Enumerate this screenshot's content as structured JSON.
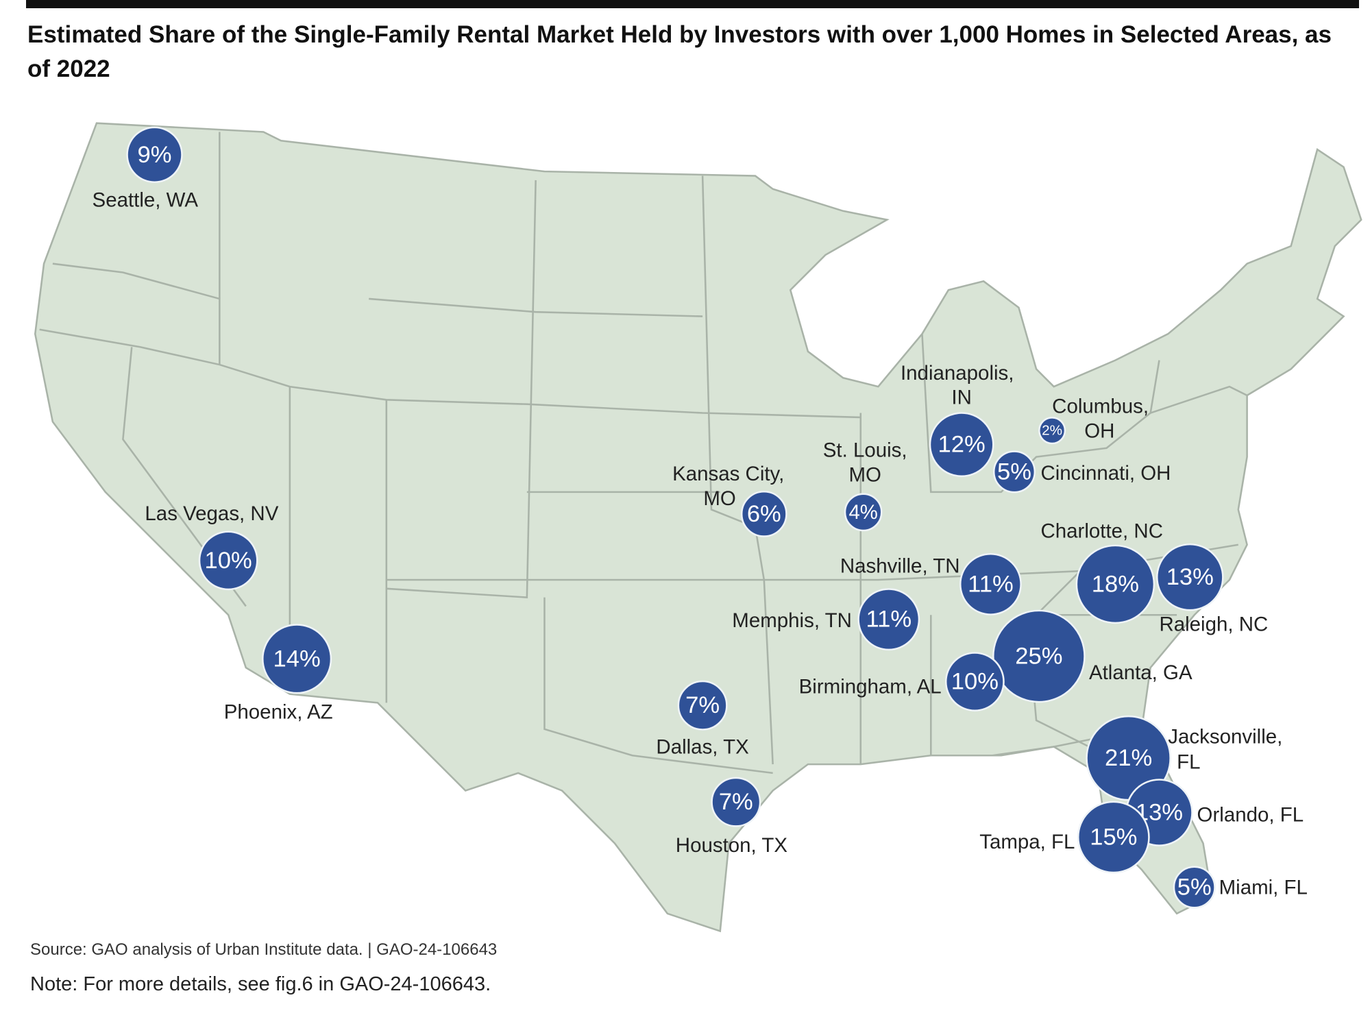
{
  "title": "Estimated Share of the Single-Family Rental Market Held by Investors with over 1,000 Homes in Selected Areas, as of 2022",
  "source": "Source: GAO analysis of Urban Institute data.  |  GAO-24-106643",
  "note": "Note: For more details, see fig.6 in GAO-24-106643.",
  "colors": {
    "bubble": "#2f5197",
    "land": "#d9e4d6",
    "border": "#a9b3a8"
  },
  "cities": [
    {
      "name": "Seattle, WA",
      "value": "9%",
      "pct": 9
    },
    {
      "name": "Las Vegas, NV",
      "value": "10%",
      "pct": 10
    },
    {
      "name": "Phoenix, AZ",
      "value": "14%",
      "pct": 14
    },
    {
      "name": "Kansas City, MO",
      "value": "6%",
      "pct": 6
    },
    {
      "name": "St. Louis, MO",
      "value": "4%",
      "pct": 4
    },
    {
      "name": "Indianapolis, IN",
      "value": "12%",
      "pct": 12
    },
    {
      "name": "Columbus, OH",
      "value": "2%",
      "pct": 2
    },
    {
      "name": "Cincinnati, OH",
      "value": "5%",
      "pct": 5
    },
    {
      "name": "Nashville, TN",
      "value": "11%",
      "pct": 11
    },
    {
      "name": "Memphis, TN",
      "value": "11%",
      "pct": 11
    },
    {
      "name": "Charlotte, NC",
      "value": "18%",
      "pct": 18
    },
    {
      "name": "Raleigh, NC",
      "value": "13%",
      "pct": 13
    },
    {
      "name": "Atlanta, GA",
      "value": "25%",
      "pct": 25
    },
    {
      "name": "Birmingham, AL",
      "value": "10%",
      "pct": 10
    },
    {
      "name": "Dallas, TX",
      "value": "7%",
      "pct": 7
    },
    {
      "name": "Houston, TX",
      "value": "7%",
      "pct": 7
    },
    {
      "name": "Jacksonville, FL",
      "value": "21%",
      "pct": 21
    },
    {
      "name": "Orlando, FL",
      "value": "13%",
      "pct": 13
    },
    {
      "name": "Tampa, FL",
      "value": "15%",
      "pct": 15
    },
    {
      "name": "Miami, FL",
      "value": "5%",
      "pct": 5
    }
  ]
}
